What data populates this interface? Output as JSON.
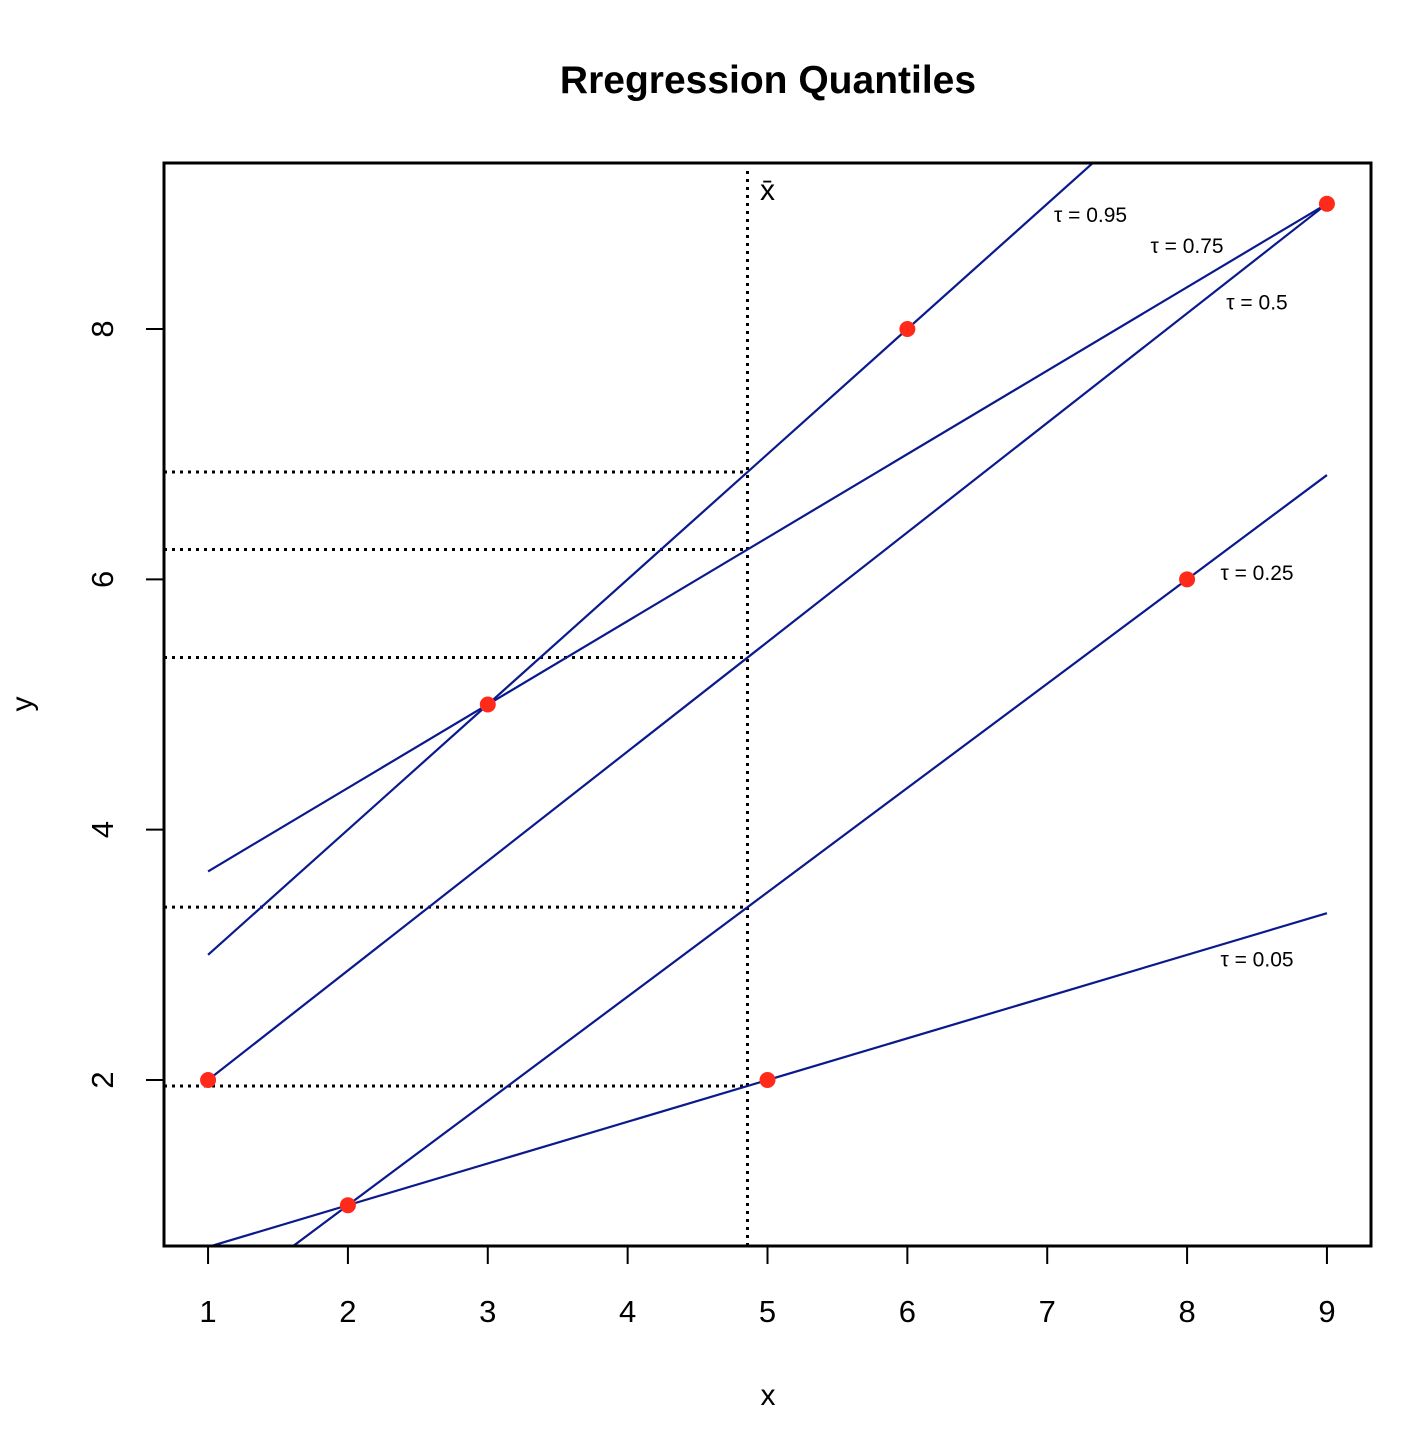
{
  "chart_data": {
    "type": "scatter",
    "title": "Rregression Quantiles",
    "xlabel": "x",
    "ylabel": "y",
    "xlim": [
      0.685,
      9.315
    ],
    "ylim": [
      0.674,
      9.326
    ],
    "xticks": [
      1,
      2,
      3,
      4,
      5,
      6,
      7,
      8,
      9
    ],
    "yticks": [
      2,
      4,
      6,
      8
    ],
    "grid": false,
    "points": {
      "color": "#ff2a1a",
      "x": [
        1,
        2,
        3,
        5,
        6,
        8,
        9
      ],
      "y": [
        2,
        1,
        5,
        2,
        8,
        6,
        9
      ]
    },
    "xbar": {
      "value": 4.857,
      "label": "x̄"
    },
    "line_color": "#0a1a8c",
    "quantile_lines": [
      {
        "label": "τ = 0.95",
        "intercept": 2.0,
        "slope": 1.0,
        "fit_at_xbar": 6.857,
        "label_pos": [
          7.31,
          8.9
        ]
      },
      {
        "label": "τ = 0.75",
        "intercept": 3.0,
        "slope": 0.6667,
        "fit_at_xbar": 6.238,
        "label_pos": [
          8.0,
          8.65
        ]
      },
      {
        "label": "τ = 0.5",
        "intercept": 1.125,
        "slope": 0.875,
        "fit_at_xbar": 5.375,
        "label_pos": [
          8.5,
          8.2
        ]
      },
      {
        "label": "τ = 0.25",
        "intercept": -0.6667,
        "slope": 0.8333,
        "fit_at_xbar": 3.381,
        "label_pos": [
          8.5,
          6.04
        ]
      },
      {
        "label": "τ = 0.05",
        "intercept": 0.3333,
        "slope": 0.3333,
        "fit_at_xbar": 1.952,
        "label_pos": [
          8.5,
          2.95
        ]
      }
    ]
  }
}
